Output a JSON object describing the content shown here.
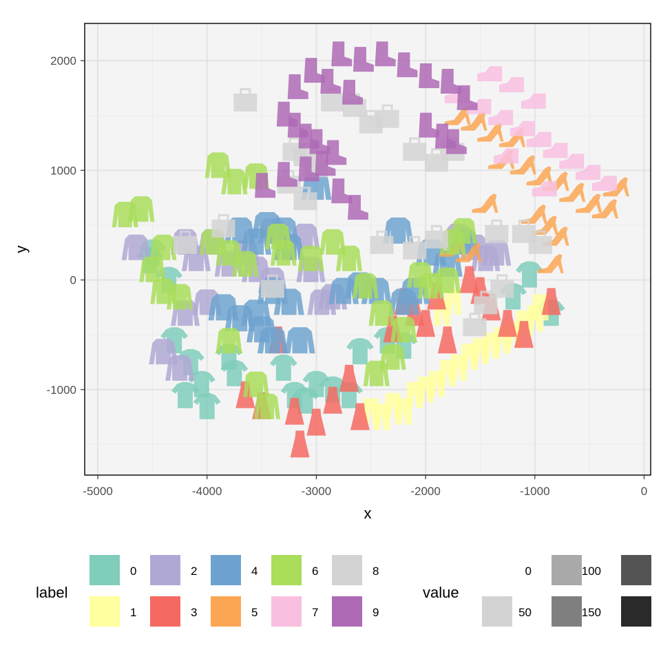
{
  "chart_data": {
    "type": "scatter",
    "xlabel": "x",
    "ylabel": "y",
    "xlim": [
      -5120,
      60
    ],
    "ylim": [
      -1780,
      2340
    ],
    "x_ticks": [
      -5000,
      -4000,
      -3000,
      -2000,
      -1000,
      0
    ],
    "y_ticks": [
      -1000,
      0,
      1000,
      2000
    ],
    "grid": true,
    "legend_placement": "bottom",
    "label_legend": {
      "title": "label",
      "entries": [
        {
          "label": "0",
          "color": "#7FCDBB"
        },
        {
          "label": "1",
          "color": "#FFFFA0"
        },
        {
          "label": "2",
          "color": "#B0A8D4"
        },
        {
          "label": "3",
          "color": "#F46A62"
        },
        {
          "label": "4",
          "color": "#6FA3CF"
        },
        {
          "label": "5",
          "color": "#FCA653"
        },
        {
          "label": "6",
          "color": "#A9DD5A"
        },
        {
          "label": "7",
          "color": "#F8BFE0"
        },
        {
          "label": "8",
          "color": "#D3D3D3"
        },
        {
          "label": "9",
          "color": "#AE6AB5"
        }
      ]
    },
    "value_legend": {
      "title": "value",
      "entries": [
        {
          "label": "0",
          "color": "#FFFFFF"
        },
        {
          "label": "50",
          "color": "#D3D3D3"
        },
        {
          "label": "100",
          "color": "#A9A9A9"
        },
        {
          "label": "150",
          "color": "#7F7F7F"
        },
        {
          "label": "",
          "color": "#545454"
        },
        {
          "label": "",
          "color": "#2A2A2A"
        }
      ]
    },
    "series": [
      {
        "label": "0",
        "points": [
          [
            -4500,
            250
          ],
          [
            -4520,
            180
          ],
          [
            -4350,
            0
          ],
          [
            -4300,
            -550
          ],
          [
            -4150,
            -750
          ],
          [
            -4050,
            -950
          ],
          [
            -4000,
            -1150
          ],
          [
            -4200,
            -1050
          ],
          [
            -3800,
            -700
          ],
          [
            -3750,
            -850
          ],
          [
            -3300,
            -800
          ],
          [
            -3200,
            -1050
          ],
          [
            -3100,
            -1100
          ],
          [
            -3000,
            -950
          ],
          [
            -2850,
            -1000
          ],
          [
            -2700,
            -1050
          ],
          [
            -2600,
            -650
          ],
          [
            -2350,
            -550
          ],
          [
            -2200,
            -600
          ],
          [
            -1200,
            -150
          ],
          [
            -1050,
            50
          ],
          [
            -850,
            -300
          ]
        ]
      },
      {
        "label": "1",
        "points": [
          [
            -2300,
            -1150
          ],
          [
            -2200,
            -1200
          ],
          [
            -2400,
            -1250
          ],
          [
            -2100,
            -1050
          ],
          [
            -2000,
            -1000
          ],
          [
            -1900,
            -950
          ],
          [
            -1800,
            -850
          ],
          [
            -1700,
            -800
          ],
          [
            -1600,
            -700
          ],
          [
            -1500,
            -650
          ],
          [
            -1400,
            -600
          ],
          [
            -1300,
            -550
          ],
          [
            -1200,
            -500
          ],
          [
            -1100,
            -400
          ],
          [
            -1000,
            -350
          ],
          [
            -950,
            -250
          ],
          [
            -2500,
            -1200
          ],
          [
            -1850,
            -300
          ],
          [
            -1750,
            -200
          ]
        ]
      },
      {
        "label": "2",
        "points": [
          [
            -4650,
            300
          ],
          [
            -4200,
            350
          ],
          [
            -4100,
            200
          ],
          [
            -3950,
            350
          ],
          [
            -3800,
            150
          ],
          [
            -3650,
            250
          ],
          [
            -3550,
            100
          ],
          [
            -3400,
            0
          ],
          [
            -3250,
            300
          ],
          [
            -3050,
            100
          ],
          [
            -2950,
            -200
          ],
          [
            -2850,
            -150
          ],
          [
            -4000,
            -200
          ],
          [
            -4200,
            -300
          ],
          [
            -4400,
            -650
          ],
          [
            -4250,
            -800
          ],
          [
            -1700,
            400
          ],
          [
            -1550,
            300
          ],
          [
            -1450,
            200
          ],
          [
            -1350,
            250
          ],
          [
            -3100,
            400
          ],
          [
            -3400,
            450
          ]
        ]
      },
      {
        "label": "3",
        "points": [
          [
            -3350,
            -550
          ],
          [
            -3650,
            -1050
          ],
          [
            -3500,
            -1150
          ],
          [
            -3200,
            -1200
          ],
          [
            -3000,
            -1300
          ],
          [
            -2850,
            -1100
          ],
          [
            -2700,
            -900
          ],
          [
            -2600,
            -1250
          ],
          [
            -3150,
            -1500
          ],
          [
            -2300,
            -450
          ],
          [
            -2200,
            -200
          ],
          [
            -2100,
            -300
          ],
          [
            -2000,
            -400
          ],
          [
            -1900,
            -150
          ],
          [
            -1800,
            -550
          ],
          [
            -1600,
            0
          ],
          [
            -1500,
            -100
          ],
          [
            -1400,
            -250
          ],
          [
            -1250,
            -400
          ],
          [
            -1100,
            -500
          ],
          [
            -850,
            -200
          ]
        ]
      },
      {
        "label": "4",
        "points": [
          [
            -3700,
            450
          ],
          [
            -3550,
            350
          ],
          [
            -3450,
            500
          ],
          [
            -3300,
            450
          ],
          [
            -3250,
            300
          ],
          [
            -3400,
            -100
          ],
          [
            -3250,
            -200
          ],
          [
            -3150,
            -550
          ],
          [
            -3550,
            -300
          ],
          [
            -3500,
            -450
          ],
          [
            -3400,
            -550
          ],
          [
            -2750,
            -100
          ],
          [
            -2600,
            -50
          ],
          [
            -2450,
            -100
          ],
          [
            -2200,
            -200
          ],
          [
            -2100,
            -100
          ],
          [
            -2250,
            450
          ],
          [
            -1950,
            250
          ],
          [
            -1800,
            150
          ],
          [
            -1650,
            350
          ],
          [
            -3850,
            -250
          ],
          [
            -3700,
            -350
          ],
          [
            -3000,
            850
          ]
        ]
      },
      {
        "label": "5",
        "points": [
          [
            -1750,
            300
          ],
          [
            -1600,
            250
          ],
          [
            -1300,
            1100
          ],
          [
            -1100,
            1050
          ],
          [
            -950,
            950
          ],
          [
            -800,
            900
          ],
          [
            -650,
            800
          ],
          [
            -500,
            700
          ],
          [
            -350,
            650
          ],
          [
            -250,
            850
          ],
          [
            -1000,
            600
          ],
          [
            -900,
            500
          ],
          [
            -800,
            400
          ],
          [
            -1450,
            700
          ],
          [
            -1700,
            1500
          ],
          [
            -1550,
            1450
          ],
          [
            -1400,
            1350
          ],
          [
            -1200,
            1300
          ],
          [
            -850,
            150
          ]
        ]
      },
      {
        "label": "6",
        "points": [
          [
            -3900,
            1050
          ],
          [
            -3750,
            900
          ],
          [
            -3550,
            950
          ],
          [
            -4750,
            600
          ],
          [
            -4600,
            650
          ],
          [
            -4400,
            300
          ],
          [
            -4500,
            100
          ],
          [
            -4400,
            -100
          ],
          [
            -4250,
            -150
          ],
          [
            -3950,
            350
          ],
          [
            -3800,
            250
          ],
          [
            -3650,
            150
          ],
          [
            -3350,
            400
          ],
          [
            -3300,
            250
          ],
          [
            -3050,
            200
          ],
          [
            -2850,
            350
          ],
          [
            -2700,
            200
          ],
          [
            -2550,
            -50
          ],
          [
            -2400,
            -300
          ],
          [
            -2200,
            -450
          ],
          [
            -3800,
            -550
          ],
          [
            -3550,
            -950
          ],
          [
            -3450,
            -1150
          ],
          [
            -2450,
            -850
          ],
          [
            -2300,
            -700
          ],
          [
            -2050,
            50
          ],
          [
            -1950,
            -50
          ],
          [
            -1800,
            0
          ],
          [
            -1750,
            350
          ],
          [
            -1650,
            450
          ]
        ]
      },
      {
        "label": "7",
        "points": [
          [
            -1700,
            1700
          ],
          [
            -1500,
            1600
          ],
          [
            -1300,
            1500
          ],
          [
            -1100,
            1400
          ],
          [
            -950,
            1300
          ],
          [
            -800,
            1200
          ],
          [
            -650,
            1100
          ],
          [
            -500,
            1000
          ],
          [
            -350,
            900
          ],
          [
            -1400,
            1900
          ],
          [
            -1200,
            1800
          ],
          [
            -1000,
            1650
          ],
          [
            -1250,
            1150
          ],
          [
            -900,
            850
          ]
        ]
      },
      {
        "label": "8",
        "points": [
          [
            -3650,
            1650
          ],
          [
            -3200,
            1200
          ],
          [
            -3100,
            1150
          ],
          [
            -3000,
            1050
          ],
          [
            -2850,
            1650
          ],
          [
            -2650,
            1600
          ],
          [
            -2500,
            1450
          ],
          [
            -2350,
            1500
          ],
          [
            -2100,
            1200
          ],
          [
            -1900,
            1100
          ],
          [
            -1750,
            1200
          ],
          [
            -3250,
            900
          ],
          [
            -3100,
            750
          ],
          [
            -2400,
            350
          ],
          [
            -2100,
            300
          ],
          [
            -1900,
            400
          ],
          [
            -1350,
            450
          ],
          [
            -1100,
            450
          ],
          [
            -950,
            350
          ],
          [
            -1300,
            -50
          ],
          [
            -1450,
            -200
          ],
          [
            -1550,
            -400
          ],
          [
            -4200,
            350
          ],
          [
            -3850,
            500
          ],
          [
            -3400,
            -50
          ]
        ]
      },
      {
        "label": "9",
        "points": [
          [
            -2800,
            2050
          ],
          [
            -2600,
            2000
          ],
          [
            -2400,
            2050
          ],
          [
            -2200,
            1950
          ],
          [
            -2000,
            1850
          ],
          [
            -1800,
            1800
          ],
          [
            -1650,
            1650
          ],
          [
            -3200,
            1750
          ],
          [
            -3050,
            1900
          ],
          [
            -2900,
            1800
          ],
          [
            -2700,
            1700
          ],
          [
            -3300,
            1500
          ],
          [
            -3200,
            1400
          ],
          [
            -3100,
            1300
          ],
          [
            -3000,
            1250
          ],
          [
            -2850,
            1150
          ],
          [
            -2950,
            1050
          ],
          [
            -3100,
            1000
          ],
          [
            -3300,
            950
          ],
          [
            -3500,
            850
          ],
          [
            -2800,
            800
          ],
          [
            -2650,
            650
          ],
          [
            -2000,
            1400
          ],
          [
            -1850,
            1300
          ],
          [
            -1750,
            1250
          ]
        ]
      }
    ]
  }
}
